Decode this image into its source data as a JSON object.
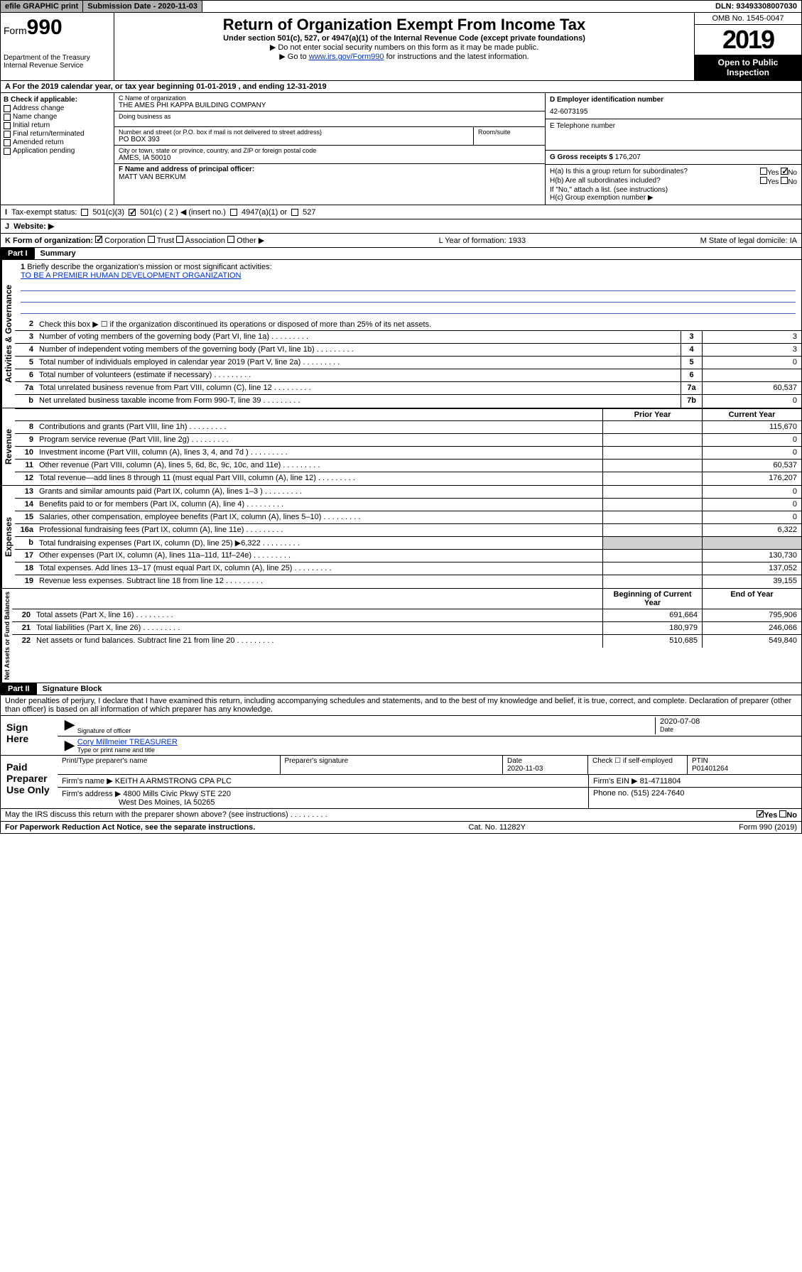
{
  "topbar": {
    "efile": "efile GRAPHIC print",
    "subdate_label": "Submission Date - 2020-11-03",
    "dln": "DLN: 93493308007030"
  },
  "header": {
    "form_label": "Form",
    "form_num": "990",
    "dept": "Department of the Treasury",
    "irs": "Internal Revenue Service",
    "title": "Return of Organization Exempt From Income Tax",
    "subtitle": "Under section 501(c), 527, or 4947(a)(1) of the Internal Revenue Code (except private foundations)",
    "note1": "▶ Do not enter social security numbers on this form as it may be made public.",
    "note2_pre": "▶ Go to ",
    "note2_link": "www.irs.gov/Form990",
    "note2_post": " for instructions and the latest information.",
    "omb": "OMB No. 1545-0047",
    "year": "2019",
    "open": "Open to Public Inspection"
  },
  "period": "A For the 2019 calendar year, or tax year beginning 01-01-2019   , and ending 12-31-2019",
  "boxB": {
    "title": "B Check if applicable:",
    "items": [
      "Address change",
      "Name change",
      "Initial return",
      "Final return/terminated",
      "Amended return",
      "Application pending"
    ]
  },
  "boxC": {
    "name_label": "C Name of organization",
    "name": "THE AMES PHI KAPPA BUILDING COMPANY",
    "dba_label": "Doing business as",
    "addr_label": "Number and street (or P.O. box if mail is not delivered to street address)",
    "room_label": "Room/suite",
    "addr": "PO BOX 393",
    "city_label": "City or town, state or province, country, and ZIP or foreign postal code",
    "city": "AMES, IA  50010"
  },
  "boxD": {
    "label": "D Employer identification number",
    "value": "42-6073195"
  },
  "boxE": {
    "label": "E Telephone number",
    "value": ""
  },
  "boxF": {
    "label": "F Name and address of principal officer:",
    "value": "MATT VAN BERKUM"
  },
  "boxG": {
    "label": "G Gross receipts $",
    "value": "176,207"
  },
  "boxH": {
    "a": "H(a)  Is this a group return for subordinates?",
    "b": "H(b)  Are all subordinates included?",
    "note": "If \"No,\" attach a list. (see instructions)",
    "c": "H(c)  Group exemption number ▶",
    "yes": "Yes",
    "no": "No"
  },
  "rowI": {
    "label": "Tax-exempt status:",
    "opts": [
      "501(c)(3)",
      "501(c) ( 2 ) ◀ (insert no.)",
      "4947(a)(1) or",
      "527"
    ]
  },
  "rowJ": {
    "label": "Website: ▶",
    "value": ""
  },
  "rowK": {
    "label": "K Form of organization:",
    "opts": [
      "Corporation",
      "Trust",
      "Association",
      "Other ▶"
    ],
    "L": "L Year of formation: 1933",
    "M": "M State of legal domicile: IA"
  },
  "part1": {
    "tag": "Part I",
    "title": "Summary"
  },
  "summary": {
    "l1_label": "Briefly describe the organization's mission or most significant activities:",
    "l1_text": "TO BE A PREMIER HUMAN DEVELOPMENT ORGANIZATION",
    "l2": "Check this box ▶ ☐  if the organization discontinued its operations or disposed of more than 25% of its net assets.",
    "lines_gov": [
      {
        "n": "3",
        "label": "Number of voting members of the governing body (Part VI, line 1a)",
        "box": "3",
        "val": "3"
      },
      {
        "n": "4",
        "label": "Number of independent voting members of the governing body (Part VI, line 1b)",
        "box": "4",
        "val": "3"
      },
      {
        "n": "5",
        "label": "Total number of individuals employed in calendar year 2019 (Part V, line 2a)",
        "box": "5",
        "val": "0"
      },
      {
        "n": "6",
        "label": "Total number of volunteers (estimate if necessary)",
        "box": "6",
        "val": ""
      },
      {
        "n": "7a",
        "label": "Total unrelated business revenue from Part VIII, column (C), line 12",
        "box": "7a",
        "val": "60,537"
      },
      {
        "n": "b",
        "label": "Net unrelated business taxable income from Form 990-T, line 39",
        "box": "7b",
        "val": "0"
      }
    ],
    "col_prior": "Prior Year",
    "col_current": "Current Year",
    "lines_rev": [
      {
        "n": "8",
        "label": "Contributions and grants (Part VIII, line 1h)",
        "prior": "",
        "cur": "115,670"
      },
      {
        "n": "9",
        "label": "Program service revenue (Part VIII, line 2g)",
        "prior": "",
        "cur": "0"
      },
      {
        "n": "10",
        "label": "Investment income (Part VIII, column (A), lines 3, 4, and 7d )",
        "prior": "",
        "cur": "0"
      },
      {
        "n": "11",
        "label": "Other revenue (Part VIII, column (A), lines 5, 6d, 8c, 9c, 10c, and 11e)",
        "prior": "",
        "cur": "60,537"
      },
      {
        "n": "12",
        "label": "Total revenue—add lines 8 through 11 (must equal Part VIII, column (A), line 12)",
        "prior": "",
        "cur": "176,207"
      }
    ],
    "lines_exp": [
      {
        "n": "13",
        "label": "Grants and similar amounts paid (Part IX, column (A), lines 1–3 )",
        "prior": "",
        "cur": "0"
      },
      {
        "n": "14",
        "label": "Benefits paid to or for members (Part IX, column (A), line 4)",
        "prior": "",
        "cur": "0"
      },
      {
        "n": "15",
        "label": "Salaries, other compensation, employee benefits (Part IX, column (A), lines 5–10)",
        "prior": "",
        "cur": "0"
      },
      {
        "n": "16a",
        "label": "Professional fundraising fees (Part IX, column (A), line 11e)",
        "prior": "",
        "cur": "6,322"
      },
      {
        "n": "b",
        "label": "Total fundraising expenses (Part IX, column (D), line 25) ▶6,322",
        "prior": "shade",
        "cur": "shade"
      },
      {
        "n": "17",
        "label": "Other expenses (Part IX, column (A), lines 11a–11d, 11f–24e)",
        "prior": "",
        "cur": "130,730"
      },
      {
        "n": "18",
        "label": "Total expenses. Add lines 13–17 (must equal Part IX, column (A), line 25)",
        "prior": "",
        "cur": "137,052"
      },
      {
        "n": "19",
        "label": "Revenue less expenses. Subtract line 18 from line 12",
        "prior": "",
        "cur": "39,155"
      }
    ],
    "col_begin": "Beginning of Current Year",
    "col_end": "End of Year",
    "lines_net": [
      {
        "n": "20",
        "label": "Total assets (Part X, line 16)",
        "prior": "691,664",
        "cur": "795,906"
      },
      {
        "n": "21",
        "label": "Total liabilities (Part X, line 26)",
        "prior": "180,979",
        "cur": "246,066"
      },
      {
        "n": "22",
        "label": "Net assets or fund balances. Subtract line 21 from line 20",
        "prior": "510,685",
        "cur": "549,840"
      }
    ]
  },
  "vtabs": {
    "gov": "Activities & Governance",
    "rev": "Revenue",
    "exp": "Expenses",
    "net": "Net Assets or Fund Balances"
  },
  "part2": {
    "tag": "Part II",
    "title": "Signature Block"
  },
  "perjury": "Under penalties of perjury, I declare that I have examined this return, including accompanying schedules and statements, and to the best of my knowledge and belief, it is true, correct, and complete. Declaration of preparer (other than officer) is based on all information of which preparer has any knowledge.",
  "sign": {
    "here": "Sign Here",
    "sig_label": "Signature of officer",
    "date": "2020-07-08",
    "date_label": "Date",
    "name": "Cory Millmeier TREASURER",
    "name_label": "Type or print name and title"
  },
  "paid": {
    "title": "Paid Preparer Use Only",
    "h_name": "Print/Type preparer's name",
    "h_sig": "Preparer's signature",
    "h_date": "Date",
    "date": "2020-11-03",
    "h_check": "Check ☐ if self-employed",
    "h_ptin": "PTIN",
    "ptin": "P01401264",
    "firm_name_label": "Firm's name    ▶",
    "firm_name": "KEITH A ARMSTRONG CPA PLC",
    "firm_ein_label": "Firm's EIN ▶",
    "firm_ein": "81-4711804",
    "firm_addr_label": "Firm's address ▶",
    "firm_addr1": "4800 Mills Civic Pkwy STE 220",
    "firm_addr2": "West Des Moines, IA  50265",
    "phone_label": "Phone no.",
    "phone": "(515) 224-7640"
  },
  "discuss": "May the IRS discuss this return with the preparer shown above? (see instructions)",
  "footer": {
    "paperwork": "For Paperwork Reduction Act Notice, see the separate instructions.",
    "cat": "Cat. No. 11282Y",
    "form": "Form 990 (2019)"
  },
  "colors": {
    "link": "#0033cc",
    "rule": "#4060c0",
    "shade": "#d0d0d0",
    "btn": "#b0b0b0"
  }
}
